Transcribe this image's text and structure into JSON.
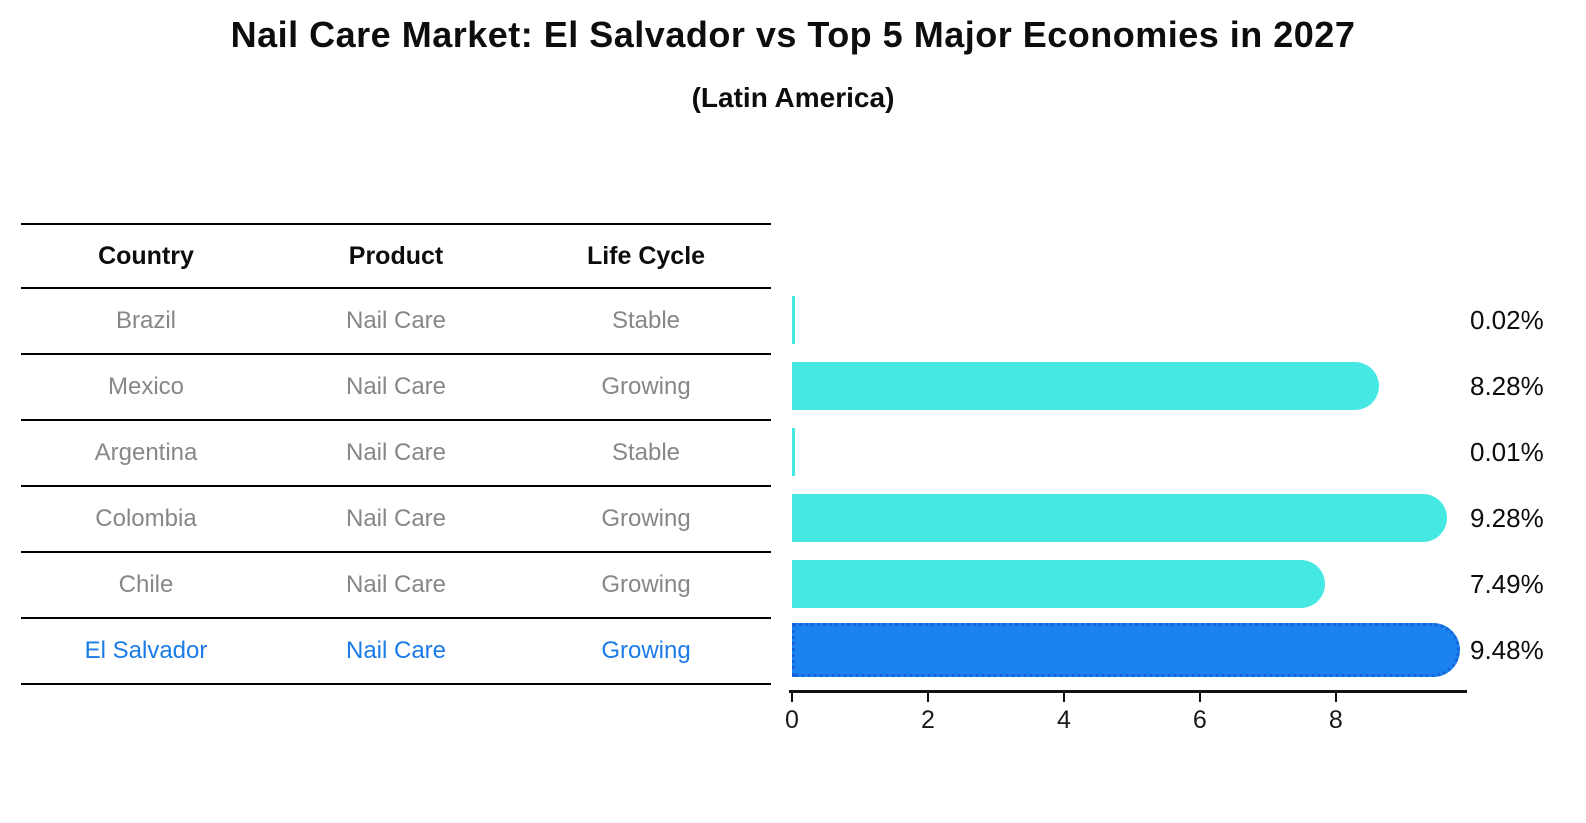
{
  "title": "Nail Care Market: El Salvador vs Top 5 Major Economies in 2027",
  "subtitle": "(Latin America)",
  "table": {
    "headers": [
      "Country",
      "Product",
      "Life Cycle"
    ],
    "rows": [
      {
        "country": "Brazil",
        "product": "Nail Care",
        "life_cycle": "Stable",
        "highlight": false
      },
      {
        "country": "Mexico",
        "product": "Nail Care",
        "life_cycle": "Growing",
        "highlight": false
      },
      {
        "country": "Argentina",
        "product": "Nail Care",
        "life_cycle": "Stable",
        "highlight": false
      },
      {
        "country": "Colombia",
        "product": "Nail Care",
        "life_cycle": "Growing",
        "highlight": false
      },
      {
        "country": "Chile",
        "product": "Nail Care",
        "life_cycle": "Growing",
        "highlight": false
      },
      {
        "country": "El Salvador",
        "product": "Nail Care",
        "life_cycle": "Growing",
        "highlight": true
      }
    ]
  },
  "chart_data": {
    "type": "bar",
    "orientation": "horizontal",
    "title": "Nail Care Market: El Salvador vs Top 5 Major Economies in 2027",
    "subtitle": "(Latin America)",
    "categories": [
      "Brazil",
      "Mexico",
      "Argentina",
      "Colombia",
      "Chile",
      "El Salvador"
    ],
    "values": [
      0.02,
      8.28,
      0.01,
      9.28,
      7.49,
      9.48
    ],
    "value_labels": [
      "0.02%",
      "8.28%",
      "0.01%",
      "9.28%",
      "7.49%",
      "9.48%"
    ],
    "x_ticks": [
      "0",
      "2",
      "4",
      "6",
      "8"
    ],
    "xlim": [
      0,
      9.93
    ],
    "grid": false,
    "legend": "none",
    "bar_color": "#46e8e4",
    "highlight_index": 5,
    "highlight_color": "#1b82f0",
    "highlight_border_color": "#1565d8",
    "highlight_border_style": "dotted"
  }
}
